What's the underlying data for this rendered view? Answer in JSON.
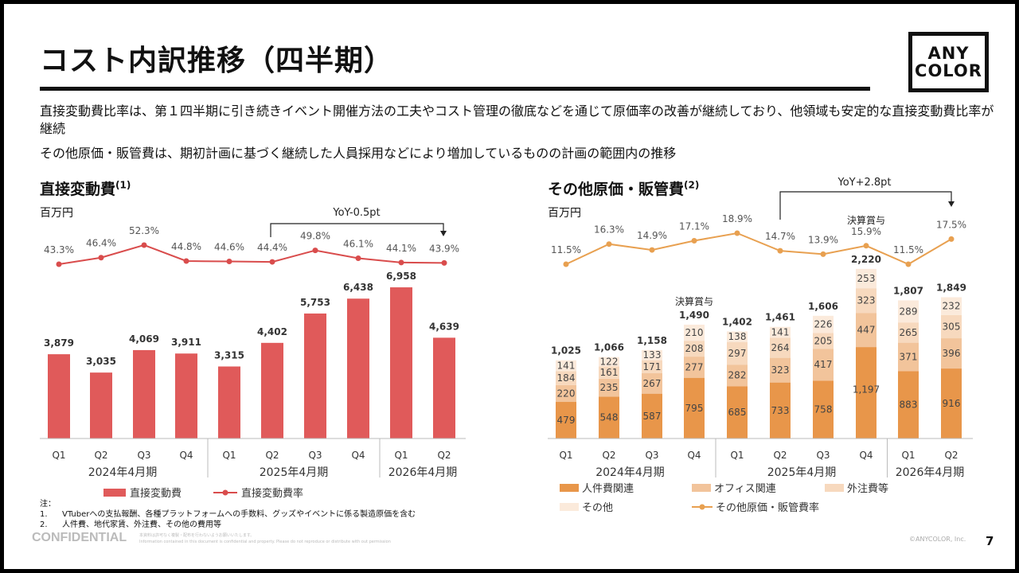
{
  "title": "コスト内訳推移（四半期）",
  "logo": [
    "ANY",
    "COLOR"
  ],
  "bullets": [
    "直接変動費比率は、第１四半期に引き続きイベント開催方法の工夫やコスト管理の徹底などを通じて原価率の改善が継続しており、他領域も安定的な直接変動費比率が継続",
    "その他原価・販管費は、期初計画に基づく継続した人員採用などにより増加しているものの計画の範囲内の推移"
  ],
  "left": {
    "heading": "直接変動費",
    "note_ref": "(1)",
    "unit": "百万円"
  },
  "right": {
    "heading": "その他原価・販管費",
    "note_ref": "(2)",
    "unit": "百万円"
  },
  "chart_data": [
    {
      "type": "bar",
      "categories": [
        "Q1",
        "Q2",
        "Q3",
        "Q4",
        "Q1",
        "Q2",
        "Q3",
        "Q4",
        "Q1",
        "Q2"
      ],
      "groups": [
        "2024年4月期",
        "2025年4月期",
        "2026年4月期"
      ],
      "series": [
        {
          "name": "直接変動費",
          "type": "bar",
          "color": "#E05A5A",
          "values": [
            3879,
            3035,
            4069,
            3911,
            3315,
            4402,
            5753,
            6438,
            6958,
            4639
          ],
          "labels": [
            "3,879",
            "3,035",
            "4,069",
            "3,911",
            "3,315",
            "4,402",
            "5,753",
            "6,438",
            "6,958",
            "4,639"
          ]
        },
        {
          "name": "直接変動費率",
          "type": "line",
          "color": "#D94C4C",
          "values": [
            43.3,
            46.4,
            52.3,
            44.8,
            44.6,
            44.4,
            49.8,
            46.1,
            44.1,
            43.9
          ],
          "labels": [
            "43.3%",
            "46.4%",
            "52.3%",
            "44.8%",
            "44.6%",
            "44.4%",
            "49.8%",
            "46.1%",
            "44.1%",
            "43.9%"
          ]
        }
      ],
      "annotation": "YoY-0.5pt"
    },
    {
      "type": "bar",
      "stacked": true,
      "categories": [
        "Q1",
        "Q2",
        "Q3",
        "Q4",
        "Q1",
        "Q2",
        "Q3",
        "Q4",
        "Q1",
        "Q2"
      ],
      "groups": [
        "2024年4月期",
        "2025年4月期",
        "2026年4月期"
      ],
      "series": [
        {
          "name": "人件費関連",
          "color": "#E8964A",
          "values": [
            479,
            548,
            587,
            795,
            685,
            733,
            758,
            1197,
            883,
            916
          ],
          "labels": [
            "479",
            "548",
            "587",
            "795",
            "685",
            "733",
            "758",
            "1,197",
            "883",
            "916"
          ]
        },
        {
          "name": "オフィス関連",
          "color": "#F2C49B",
          "values": [
            220,
            235,
            267,
            277,
            282,
            323,
            417,
            447,
            371,
            396
          ]
        },
        {
          "name": "外注費等",
          "color": "#F7D9BE",
          "values": [
            184,
            161,
            171,
            208,
            297,
            264,
            205,
            323,
            265,
            305
          ]
        },
        {
          "name": "その他",
          "color": "#FBEADB",
          "values": [
            141,
            122,
            133,
            210,
            138,
            141,
            226,
            253,
            289,
            232
          ]
        }
      ],
      "totals": [
        "1,025",
        "1,066",
        "1,158",
        "1,490",
        "1,402",
        "1,461",
        "1,606",
        "2,220",
        "1,807",
        "1,849"
      ],
      "totals_values": [
        1025,
        1066,
        1158,
        1490,
        1402,
        1461,
        1606,
        2220,
        1807,
        1849
      ],
      "rate": {
        "name": "その他原価・販管費率",
        "color": "#E8A050",
        "values": [
          11.5,
          16.3,
          14.9,
          17.1,
          18.9,
          14.7,
          13.9,
          15.9,
          11.5,
          17.5
        ],
        "labels": [
          "11.5%",
          "16.3%",
          "14.9%",
          "17.1%",
          "18.9%",
          "14.7%",
          "13.9%",
          "15.9%",
          "11.5%",
          "17.5%"
        ]
      },
      "bonus_label": "決算賞与",
      "annotation": "YoY+2.8pt"
    }
  ],
  "notes": {
    "head": "注：",
    "items": [
      {
        "n": "1.",
        "t": "VTuberへの支払報酬、各種プラットフォームへの手数料、グッズやイベントに係る製造原価を含む"
      },
      {
        "n": "2.",
        "t": "人件費、地代家賃、外注費、その他の費用等"
      }
    ]
  },
  "footer": {
    "confidential": "CONFIDENTIAL",
    "jp": "本資料は許可なく複製・配布を行わないようお願いいたします。",
    "en": "Information contained in this document is confidential and property. Please do not reproduce or distribute with out permission",
    "copyright": "©ANYCOLOR, Inc.",
    "page": "7"
  }
}
